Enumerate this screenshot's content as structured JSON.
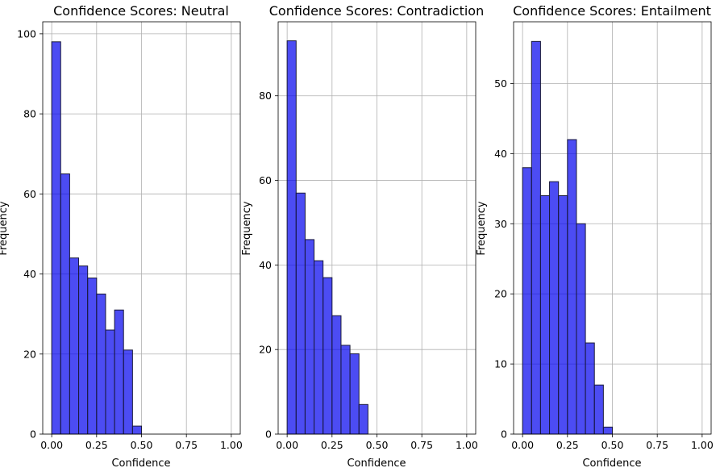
{
  "bar_color": "#0000ee",
  "bar_edge": "#1a1a3a",
  "grid_color": "#b0b0b0",
  "chart_data": [
    {
      "type": "bar",
      "title": "Confidence Scores: Neutral",
      "xlabel": "Confidence",
      "ylabel": "Frequency",
      "bin_width": 0.05,
      "bin_starts": [
        0.0,
        0.05,
        0.1,
        0.15,
        0.2,
        0.25,
        0.3,
        0.35,
        0.4,
        0.45,
        0.5
      ],
      "values": [
        98,
        65,
        44,
        42,
        39,
        35,
        26,
        31,
        21,
        2,
        0
      ],
      "xlim": [
        -0.05,
        1.05
      ],
      "ylim": [
        0,
        103
      ],
      "xticks": [
        0.0,
        0.25,
        0.5,
        0.75,
        1.0
      ],
      "xtick_labels": [
        "0.00",
        "0.25",
        "0.50",
        "0.75",
        "1.00"
      ],
      "yticks": [
        0,
        20,
        40,
        60,
        80,
        100
      ],
      "ytick_labels": [
        "0",
        "20",
        "40",
        "60",
        "80",
        "100"
      ],
      "grid": true
    },
    {
      "type": "bar",
      "title": "Confidence Scores: Contradiction",
      "xlabel": "Confidence",
      "ylabel": "Frequency",
      "bin_width": 0.05,
      "bin_starts": [
        0.0,
        0.05,
        0.1,
        0.15,
        0.2,
        0.25,
        0.3,
        0.35,
        0.4,
        0.45
      ],
      "values": [
        93,
        57,
        46,
        41,
        37,
        28,
        21,
        19,
        7,
        0
      ],
      "xlim": [
        -0.05,
        1.05
      ],
      "ylim": [
        0,
        97.5
      ],
      "xticks": [
        0.0,
        0.25,
        0.5,
        0.75,
        1.0
      ],
      "xtick_labels": [
        "0.00",
        "0.25",
        "0.50",
        "0.75",
        "1.00"
      ],
      "yticks": [
        0,
        20,
        40,
        60,
        80
      ],
      "ytick_labels": [
        "0",
        "20",
        "40",
        "60",
        "80"
      ],
      "grid": true
    },
    {
      "type": "bar",
      "title": "Confidence Scores: Entailment",
      "xlabel": "Confidence",
      "ylabel": "Frequency",
      "bin_width": 0.05,
      "bin_starts": [
        0.0,
        0.05,
        0.1,
        0.15,
        0.2,
        0.25,
        0.3,
        0.35,
        0.4,
        0.45
      ],
      "values": [
        38,
        56,
        34,
        36,
        34,
        42,
        30,
        13,
        7,
        1
      ],
      "xlim": [
        -0.05,
        1.05
      ],
      "ylim": [
        0,
        58.8
      ],
      "xticks": [
        0.0,
        0.25,
        0.5,
        0.75,
        1.0
      ],
      "xtick_labels": [
        "0.00",
        "0.25",
        "0.50",
        "0.75",
        "1.00"
      ],
      "yticks": [
        0,
        10,
        20,
        30,
        40,
        50
      ],
      "ytick_labels": [
        "0",
        "10",
        "20",
        "30",
        "40",
        "50"
      ],
      "grid": true
    }
  ]
}
